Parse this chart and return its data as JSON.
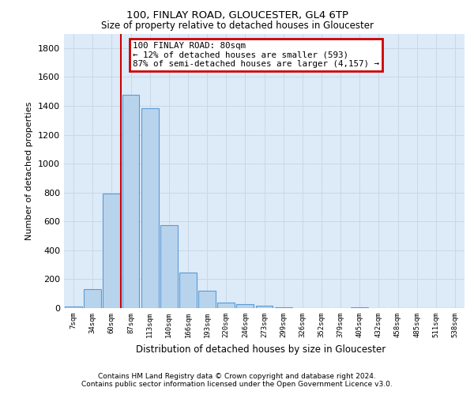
{
  "title1": "100, FINLAY ROAD, GLOUCESTER, GL4 6TP",
  "title2": "Size of property relative to detached houses in Gloucester",
  "xlabel": "Distribution of detached houses by size in Gloucester",
  "ylabel": "Number of detached properties",
  "bin_labels": [
    "7sqm",
    "34sqm",
    "60sqm",
    "87sqm",
    "113sqm",
    "140sqm",
    "166sqm",
    "193sqm",
    "220sqm",
    "246sqm",
    "273sqm",
    "299sqm",
    "326sqm",
    "352sqm",
    "379sqm",
    "405sqm",
    "432sqm",
    "458sqm",
    "485sqm",
    "511sqm",
    "538sqm"
  ],
  "bar_values": [
    10,
    130,
    795,
    1475,
    1385,
    575,
    245,
    120,
    38,
    25,
    18,
    8,
    1,
    0,
    0,
    5,
    0,
    0,
    0,
    0,
    0
  ],
  "bar_color": "#b8d4ec",
  "bar_edge_color": "#5b9bd5",
  "vline_color": "#cc0000",
  "vline_x": 2.5,
  "annotation_text": "100 FINLAY ROAD: 80sqm\n← 12% of detached houses are smaller (593)\n87% of semi-detached houses are larger (4,157) →",
  "annotation_box_color": "#ffffff",
  "annotation_box_edge": "#cc0000",
  "grid_color": "#c8d8e8",
  "bg_color": "#ddeaf8",
  "ylim": [
    0,
    1900
  ],
  "yticks": [
    0,
    200,
    400,
    600,
    800,
    1000,
    1200,
    1400,
    1600,
    1800
  ],
  "footer1": "Contains HM Land Registry data © Crown copyright and database right 2024.",
  "footer2": "Contains public sector information licensed under the Open Government Licence v3.0."
}
